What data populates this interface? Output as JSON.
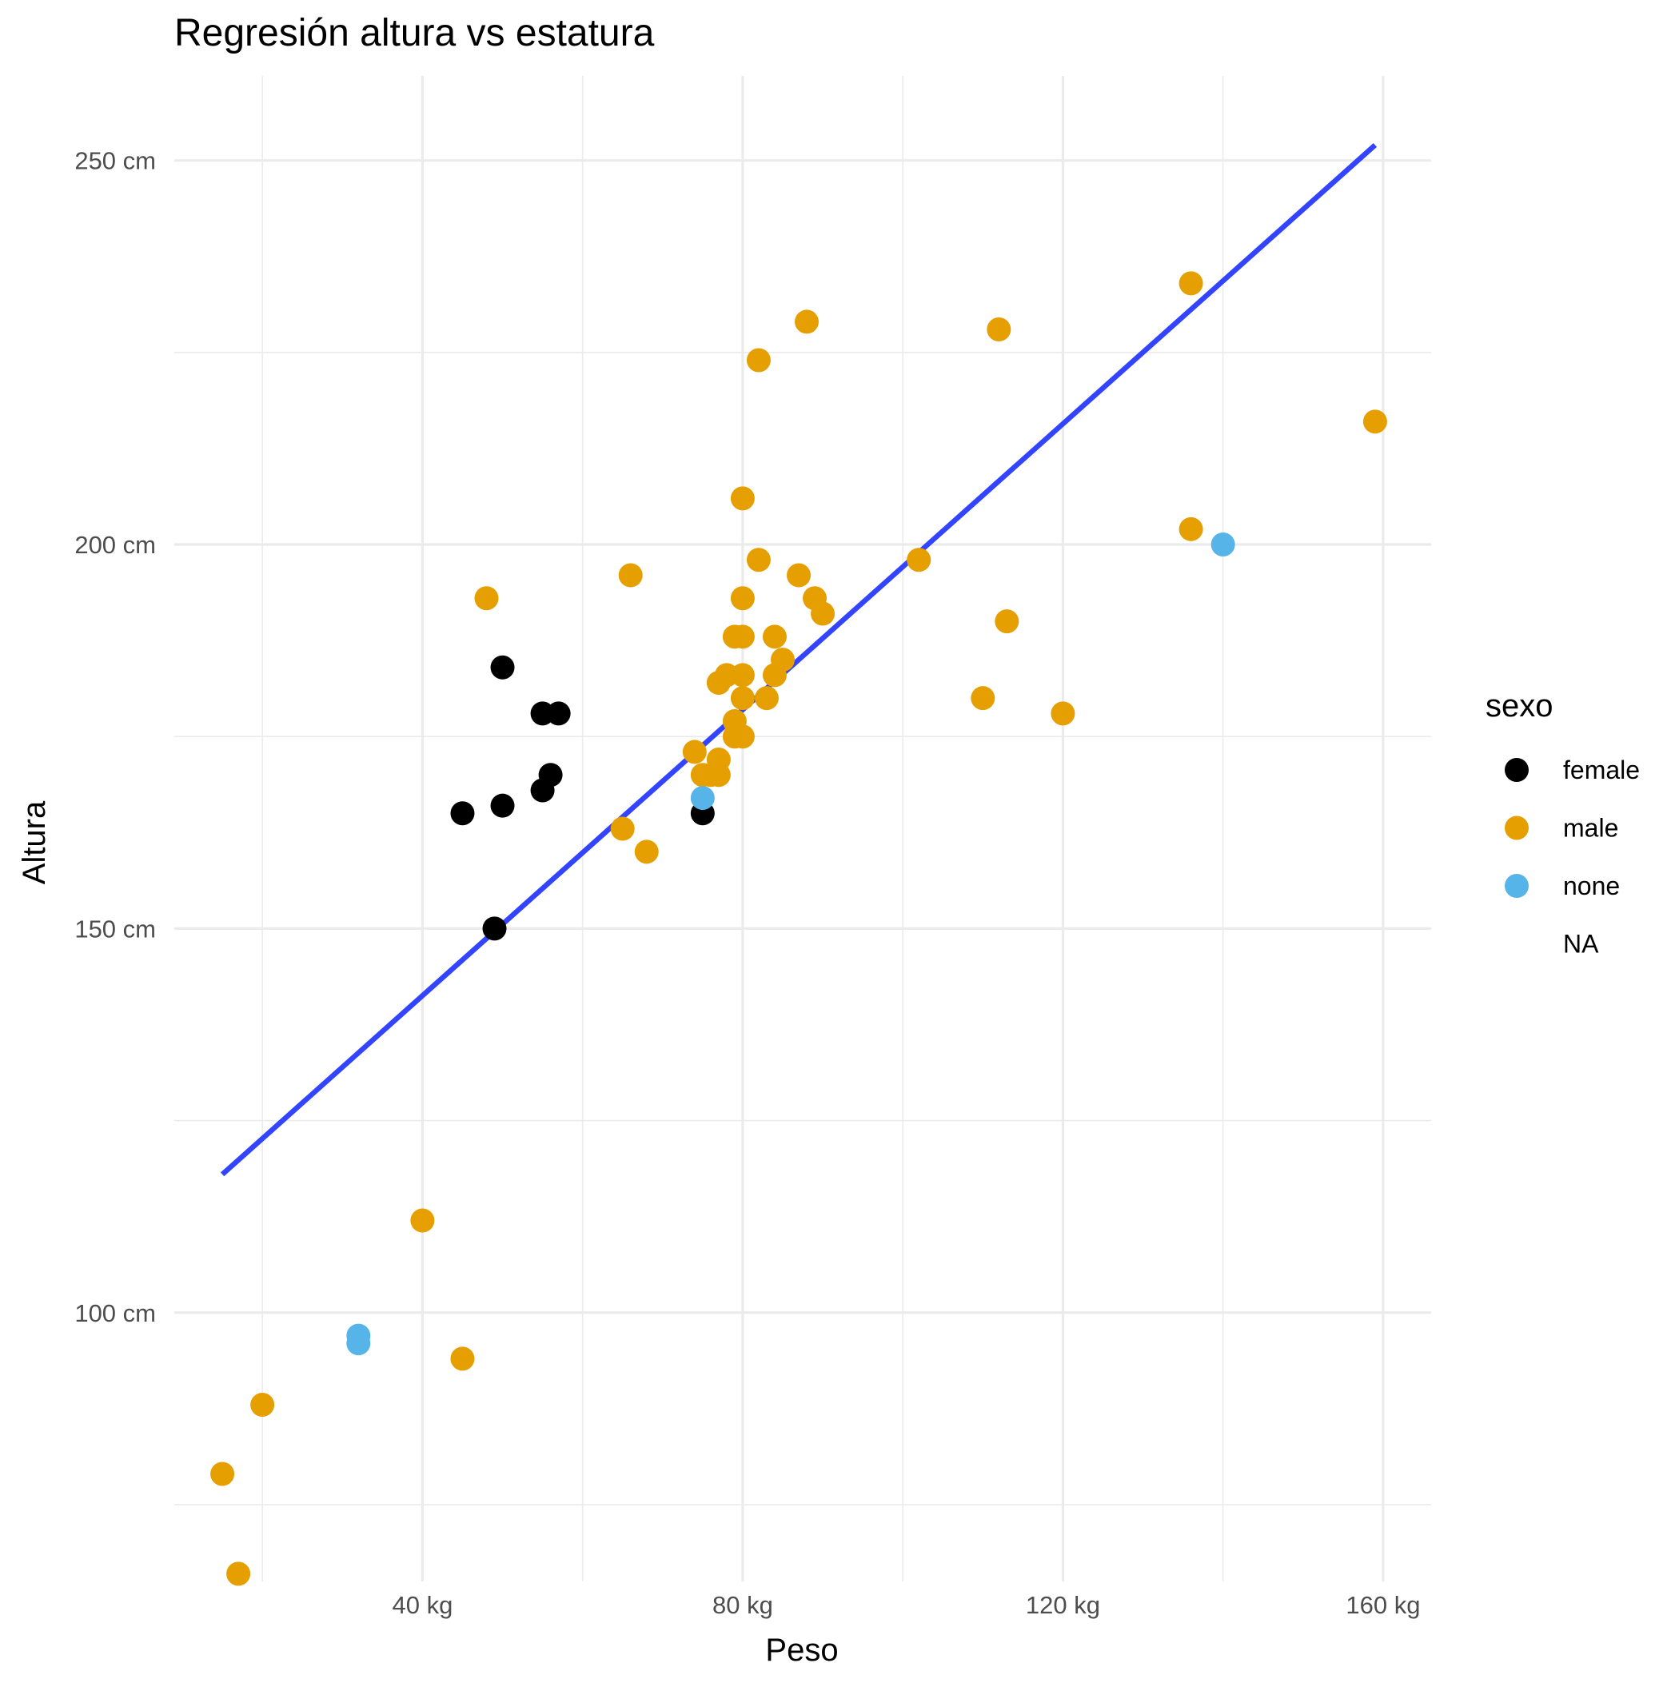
{
  "chart_data": {
    "type": "scatter",
    "title": "Regresión altura vs estatura",
    "xlabel": "Peso",
    "ylabel": "Altura",
    "xlim": [
      9,
      166
    ],
    "ylim": [
      65,
      261
    ],
    "x_ticks": [
      40,
      80,
      120,
      160
    ],
    "x_tick_labels": [
      "40 kg",
      "80 kg",
      "120 kg",
      "160 kg"
    ],
    "x_minor": [
      20,
      60,
      100,
      140
    ],
    "y_ticks": [
      100,
      150,
      200,
      250
    ],
    "y_tick_labels": [
      "100 cm",
      "150 cm",
      "200 cm",
      "250 cm"
    ],
    "y_minor": [
      75,
      125,
      175,
      225
    ],
    "grid": true,
    "legend": {
      "title": "sexo",
      "position": "right",
      "entries": [
        "female",
        "male",
        "none",
        "NA"
      ]
    },
    "colors": {
      "female": "#000000",
      "male": "#E69F00",
      "none": "#56B4E9",
      "regression": "#3344FF",
      "grid": "#EBEBEB"
    },
    "regression_line": {
      "x": [
        15,
        159
      ],
      "y": [
        118,
        252
      ]
    },
    "series": [
      {
        "name": "female",
        "points": [
          [
            49,
            150
          ],
          [
            45,
            165
          ],
          [
            50,
            166
          ],
          [
            50,
            184
          ],
          [
            55,
            168
          ],
          [
            56,
            170
          ],
          [
            55,
            178
          ],
          [
            57,
            178
          ],
          [
            75,
            165
          ]
        ]
      },
      {
        "name": "male",
        "points": [
          [
            15,
            79
          ],
          [
            17,
            66
          ],
          [
            20,
            88
          ],
          [
            40,
            112
          ],
          [
            45,
            94
          ],
          [
            48,
            193
          ],
          [
            65,
            163
          ],
          [
            66,
            196
          ],
          [
            68,
            160
          ],
          [
            74,
            173
          ],
          [
            75,
            170
          ],
          [
            76,
            170
          ],
          [
            77,
            170
          ],
          [
            77,
            172
          ],
          [
            77,
            182
          ],
          [
            78,
            183
          ],
          [
            79,
            177
          ],
          [
            79,
            175
          ],
          [
            79,
            188
          ],
          [
            80,
            175
          ],
          [
            80,
            180
          ],
          [
            80,
            183
          ],
          [
            80,
            188
          ],
          [
            80,
            193
          ],
          [
            80,
            206
          ],
          [
            82,
            198
          ],
          [
            82,
            224
          ],
          [
            83,
            180
          ],
          [
            84,
            183
          ],
          [
            84,
            188
          ],
          [
            85,
            185
          ],
          [
            87,
            196
          ],
          [
            88,
            229
          ],
          [
            89,
            193
          ],
          [
            90,
            191
          ],
          [
            102,
            198
          ],
          [
            110,
            180
          ],
          [
            112,
            228
          ],
          [
            113,
            190
          ],
          [
            120,
            178
          ],
          [
            136,
            202
          ],
          [
            136,
            234
          ],
          [
            159,
            216
          ]
        ]
      },
      {
        "name": "none",
        "points": [
          [
            32,
            97
          ],
          [
            32,
            96
          ],
          [
            75,
            167
          ],
          [
            140,
            200
          ]
        ]
      }
    ]
  }
}
